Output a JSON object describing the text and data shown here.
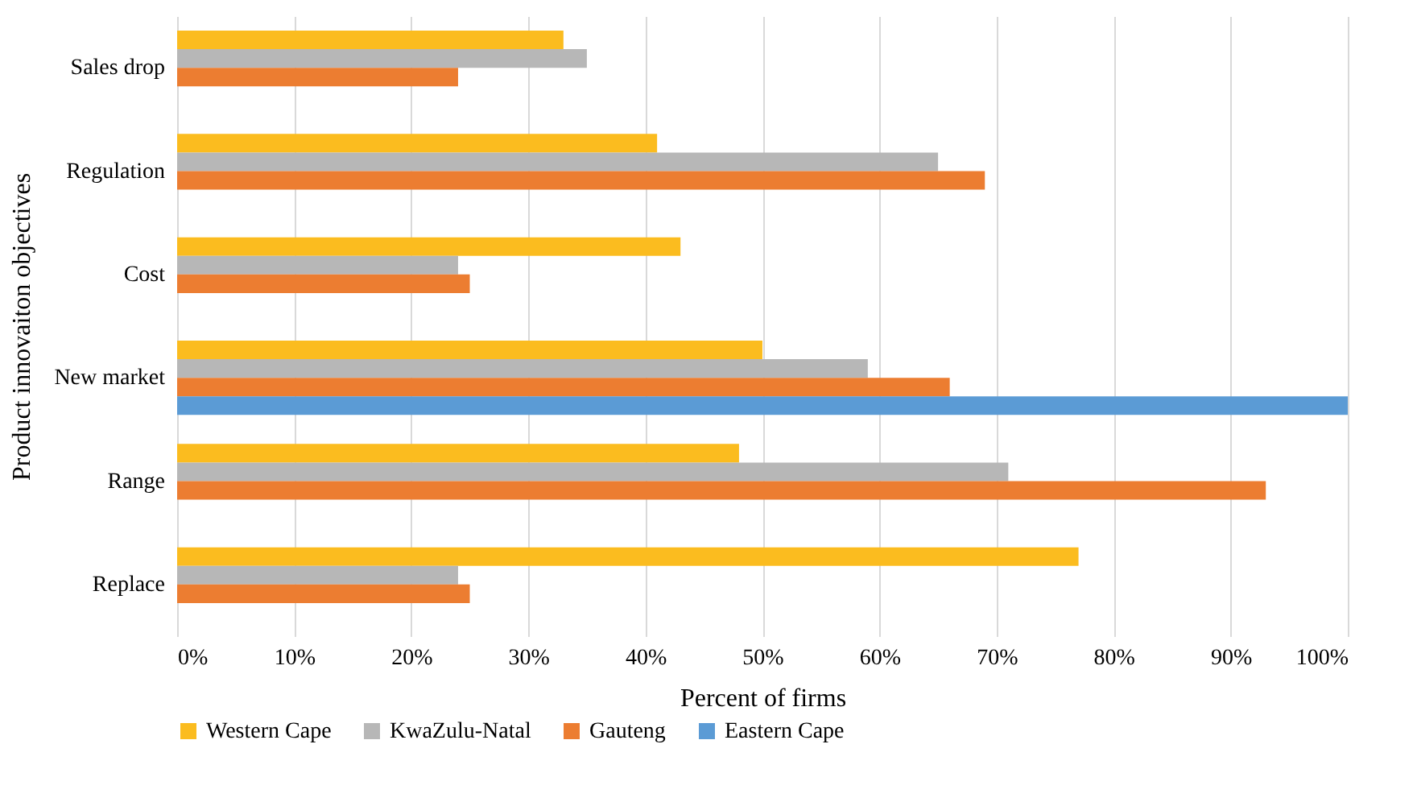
{
  "chart_data": {
    "type": "bar",
    "orientation": "horizontal",
    "xlabel": "Percent of firms",
    "ylabel": "Product innovaiton objectives",
    "categories": [
      "Sales drop",
      "Regulation",
      "Cost",
      "New market",
      "Range",
      "Replace"
    ],
    "series": [
      {
        "name": "Western Cape",
        "color": "#fbbc1f",
        "values": [
          33,
          41,
          43,
          50,
          48,
          77
        ]
      },
      {
        "name": "KwaZulu-Natal",
        "color": "#b7b7b7",
        "values": [
          35,
          65,
          24,
          59,
          71,
          24
        ]
      },
      {
        "name": "Gauteng",
        "color": "#ec7d31",
        "values": [
          24,
          69,
          25,
          66,
          93,
          25
        ]
      },
      {
        "name": "Eastern Cape",
        "color": "#5b9bd5",
        "values": [
          null,
          null,
          null,
          100,
          null,
          null
        ]
      }
    ],
    "xlim": [
      0,
      100
    ],
    "xticks": [
      {
        "value": 0,
        "label": "0%"
      },
      {
        "value": 10,
        "label": "10%"
      },
      {
        "value": 20,
        "label": "20%"
      },
      {
        "value": 30,
        "label": "30%"
      },
      {
        "value": 40,
        "label": "40%"
      },
      {
        "value": 50,
        "label": "50%"
      },
      {
        "value": 60,
        "label": "60%"
      },
      {
        "value": 70,
        "label": "70%"
      },
      {
        "value": 80,
        "label": "80%"
      },
      {
        "value": 90,
        "label": "90%"
      },
      {
        "value": 100,
        "label": "100%"
      }
    ],
    "grid": "x",
    "legend": "bottom"
  }
}
